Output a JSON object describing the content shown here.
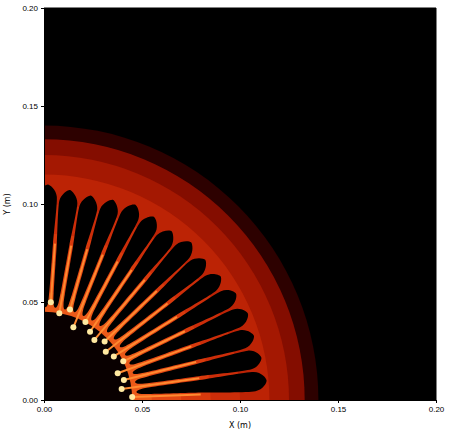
{
  "chart_data": {
    "type": "image",
    "xlabel": "X (m)",
    "ylabel": "Y (m)",
    "xlim": [
      0,
      0.2
    ],
    "ylim": [
      0,
      0.2
    ],
    "xticks": [
      {
        "value": 0,
        "label": "0.00"
      },
      {
        "value": 0.05,
        "label": "0.05"
      },
      {
        "value": 0.1,
        "label": "0.10"
      },
      {
        "value": 0.15,
        "label": "0.15"
      },
      {
        "value": 0.2,
        "label": "0.20"
      }
    ],
    "yticks": [
      {
        "value": 0,
        "label": "0.00"
      },
      {
        "value": 0.05,
        "label": "0.05"
      },
      {
        "value": 0.1,
        "label": "0.10"
      },
      {
        "value": 0.15,
        "label": "0.15"
      },
      {
        "value": 0.2,
        "label": "0.20"
      }
    ],
    "radial_profile": {
      "r": [
        0.145,
        0.14,
        0.133,
        0.125,
        0.115,
        0.1,
        0.085,
        0.07,
        0.055,
        0.045
      ],
      "values": [
        0.0,
        0.1,
        0.3,
        0.38,
        0.45,
        0.5,
        0.55,
        0.6,
        0.65,
        0.02
      ]
    },
    "bubbles": {
      "angle": [
        89,
        83,
        77,
        71,
        65,
        59,
        53,
        47,
        41,
        35,
        29,
        23,
        17,
        11,
        5
      ],
      "r": [
        0.11,
        0.108,
        0.107,
        0.108,
        0.11,
        0.109,
        0.108,
        0.11,
        0.109,
        0.11,
        0.112,
        0.113,
        0.112,
        0.113,
        0.114
      ]
    },
    "spikes": {
      "angle": [
        86,
        80,
        74,
        68,
        62,
        56,
        50,
        44,
        38,
        32,
        26,
        20,
        14,
        8,
        2
      ],
      "r": [
        0.05,
        0.045,
        0.048,
        0.04,
        0.045,
        0.042,
        0.04,
        0.043,
        0.04,
        0.042,
        0.045,
        0.04,
        0.042,
        0.04,
        0.045
      ]
    }
  }
}
